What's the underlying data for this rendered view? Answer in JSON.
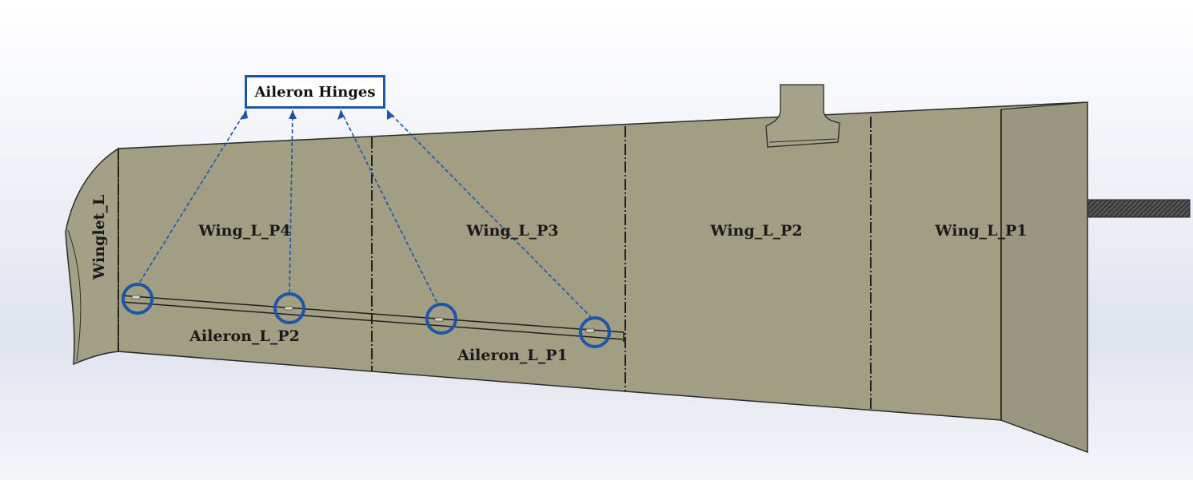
{
  "callout": {
    "title": "Aileron Hinges",
    "hinge_count": 4
  },
  "parts": {
    "winglet": "Winglet_L",
    "wing_p4": "Wing_L_P4",
    "wing_p3": "Wing_L_P3",
    "wing_p2": "Wing_L_P2",
    "wing_p1": "Wing_L_P1",
    "aileron_p2": "Aileron_L_P2",
    "aileron_p1": "Aileron_L_P1"
  },
  "colors": {
    "wing_surface": "#a19e84",
    "edge_line": "#2a2a2a",
    "callout_blue": "#1d56a8",
    "spar_rod": "#3a3a3a",
    "background": "#e6e9f1"
  }
}
